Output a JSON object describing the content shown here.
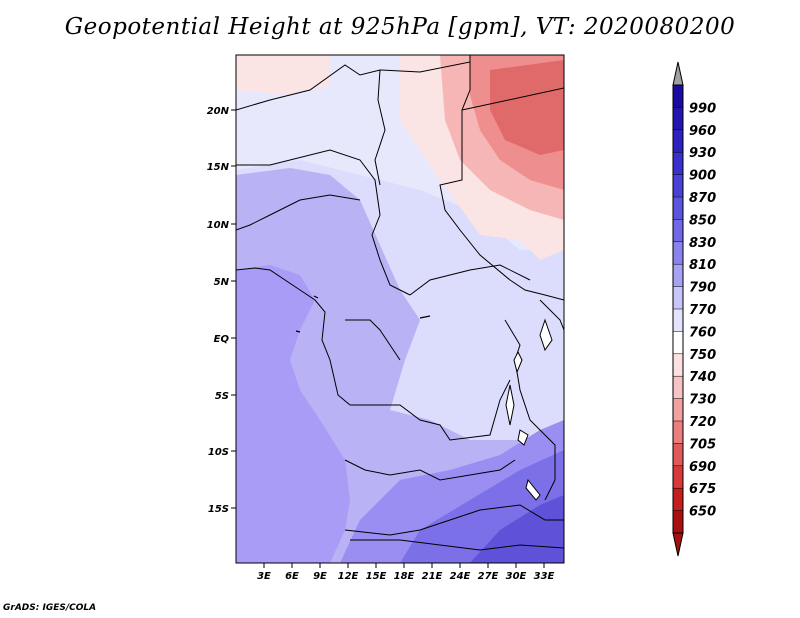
{
  "title": "Geopotential Height at 925hPa [gpm], VT: 2020080200",
  "credit": "GrADS: IGES/COLA",
  "map": {
    "lat_labels": [
      "20N",
      "15N",
      "10N",
      "5N",
      "EQ",
      "5S",
      "10S",
      "15S"
    ],
    "lon_labels": [
      "3E",
      "6E",
      "9E",
      "12E",
      "15E",
      "18E",
      "21E",
      "24E",
      "27E",
      "30E",
      "33E"
    ],
    "colors": {
      "ocean": "#a89cf7",
      "west_land": "#b9b2f5",
      "central": "#dcdcfc",
      "north": "#e8e8fd",
      "south_1": "#9a8ef2",
      "south_2": "#7c70e8",
      "south_3": "#5d52d8",
      "pink_1": "#fbe4e4",
      "pink_2": "#f6b6b6",
      "pink_3": "#ee8e8e",
      "pink_4": "#e06a6a"
    }
  },
  "colorbar": {
    "labels": [
      "990",
      "960",
      "930",
      "900",
      "870",
      "850",
      "830",
      "810",
      "790",
      "770",
      "760",
      "750",
      "740",
      "730",
      "720",
      "705",
      "690",
      "675",
      "650"
    ],
    "colors": [
      "#1a0aa0",
      "#2316b0",
      "#2d22bf",
      "#3a30cc",
      "#4a42d6",
      "#5c55de",
      "#7068e6",
      "#8a83ee",
      "#a8a2f4",
      "#c8c5f9",
      "#e4e3fc",
      "#ffffff",
      "#fde0e0",
      "#f8c3c3",
      "#f2a0a0",
      "#ea7e7e",
      "#e15a5a",
      "#d63a3a",
      "#c41e1e",
      "#a80f0f"
    ],
    "top_arrow_color": "#a0a0a0",
    "bottom_arrow_color": "#a80f0f"
  }
}
